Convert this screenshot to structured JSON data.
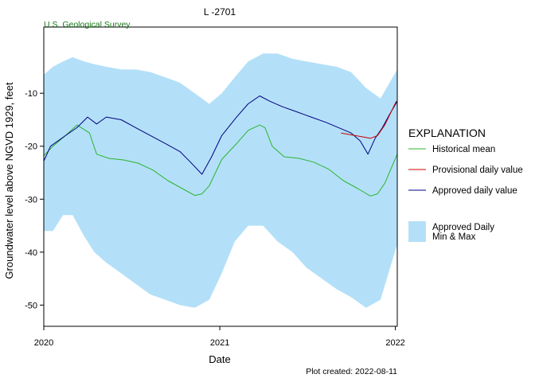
{
  "chart_data": {
    "type": "area",
    "title": "L  -2701",
    "subtitle": "U.S. Geological Survey",
    "xlabel": "Date",
    "ylabel": "Groundwater level above NGVD 1929, feet",
    "footnote": "Plot created: 2022-08-11",
    "xlim": [
      "2020-01-01",
      "2022-01-05"
    ],
    "ylim": [
      -54,
      2.5
    ],
    "x_ticks": [
      "2020-01-01",
      "2021-01-01",
      "2022-01-01"
    ],
    "x_tick_labels": [
      "2020",
      "2021",
      "2022"
    ],
    "y_ticks": [
      -10,
      -20,
      -30,
      -40,
      -50
    ],
    "y_tick_labels": [
      "-10",
      "-20",
      "-30",
      "-40",
      "-50"
    ],
    "grid": false,
    "legend_position": "right",
    "legend": {
      "title": "EXPLANATION",
      "items": [
        {
          "label": "Historical mean",
          "color": "#2db32d",
          "kind": "line"
        },
        {
          "label": "Provisional daily value",
          "color": "#cc0000",
          "kind": "line"
        },
        {
          "label": "Approved daily value",
          "color": "#000080",
          "kind": "line"
        },
        {
          "label": "Approved Daily\nMin & Max",
          "color": "#b3e0f8",
          "kind": "box"
        }
      ]
    },
    "series": [
      {
        "name": "Approved Daily Min & Max",
        "kind": "band",
        "color": "#b3e0f8",
        "x": [
          "2020-01-01",
          "2020-01-20",
          "2020-02-10",
          "2020-03-01",
          "2020-03-25",
          "2020-04-15",
          "2020-05-10",
          "2020-06-10",
          "2020-07-10",
          "2020-08-10",
          "2020-09-10",
          "2020-10-10",
          "2020-11-10",
          "2020-12-10",
          "2021-01-05",
          "2021-02-01",
          "2021-03-01",
          "2021-04-01",
          "2021-05-01",
          "2021-06-01",
          "2021-07-01",
          "2021-08-01",
          "2021-09-01",
          "2021-10-01",
          "2021-11-01",
          "2021-12-01",
          "2022-01-05"
        ],
        "upper": [
          -6.5,
          -5.0,
          -4.0,
          -3.2,
          -4.0,
          -4.5,
          -5.0,
          -5.5,
          -5.5,
          -6.0,
          -7.0,
          -8.0,
          -10.0,
          -12.0,
          -10.0,
          -7.0,
          -4.0,
          -2.5,
          -2.5,
          -3.5,
          -4.0,
          -4.5,
          -5.0,
          -6.0,
          -9.0,
          -11.0,
          -5.5
        ],
        "lower": [
          -36.0,
          -36.0,
          -33.0,
          -33.0,
          -37.0,
          -40.0,
          -42.0,
          -44.0,
          -46.0,
          -48.0,
          -49.0,
          -50.0,
          -50.5,
          -49.0,
          -44.0,
          -38.0,
          -35.0,
          -35.0,
          -38.0,
          -40.0,
          -43.0,
          -45.0,
          -47.0,
          -48.5,
          -50.5,
          -49.0,
          -38.5
        ]
      },
      {
        "name": "Historical mean",
        "kind": "line",
        "color": "#2db32d",
        "x": [
          "2020-01-01",
          "2020-01-20",
          "2020-02-15",
          "2020-03-10",
          "2020-04-05",
          "2020-04-20",
          "2020-05-15",
          "2020-06-15",
          "2020-07-15",
          "2020-08-15",
          "2020-09-15",
          "2020-10-15",
          "2020-11-10",
          "2020-11-25",
          "2020-12-10",
          "2021-01-05",
          "2021-02-05",
          "2021-03-01",
          "2021-03-25",
          "2021-04-05",
          "2021-04-20",
          "2021-05-15",
          "2021-06-15",
          "2021-07-15",
          "2021-08-15",
          "2021-09-15",
          "2021-10-15",
          "2021-11-10",
          "2021-11-25",
          "2021-12-10",
          "2022-01-05"
        ],
        "values": [
          -21.8,
          -20.0,
          -18.0,
          -16.0,
          -17.5,
          -21.5,
          -22.3,
          -22.6,
          -23.2,
          -24.5,
          -26.5,
          -28.0,
          -29.3,
          -29.0,
          -27.5,
          -22.5,
          -19.5,
          -17.0,
          -16.0,
          -16.5,
          -20.0,
          -22.0,
          -22.3,
          -23.0,
          -24.3,
          -26.5,
          -28.0,
          -29.4,
          -29.0,
          -27.0,
          -21.5
        ]
      },
      {
        "name": "Approved daily value",
        "kind": "line",
        "color": "#000080",
        "x": [
          "2020-01-01",
          "2020-01-15",
          "2020-02-15",
          "2020-03-10",
          "2020-04-01",
          "2020-04-20",
          "2020-05-10",
          "2020-06-10",
          "2020-07-10",
          "2020-08-10",
          "2020-09-10",
          "2020-10-10",
          "2020-11-01",
          "2020-11-25",
          "2020-12-15",
          "2021-01-05",
          "2021-02-05",
          "2021-03-01",
          "2021-03-25",
          "2021-04-15",
          "2021-05-10",
          "2021-06-10",
          "2021-07-10",
          "2021-08-10",
          "2021-09-05",
          "2021-10-01",
          "2021-10-20",
          "2021-11-05",
          "2021-11-20",
          "2021-12-05",
          "2021-12-20",
          "2022-01-05"
        ],
        "values": [
          -22.8,
          -20.0,
          -18.0,
          -16.5,
          -14.5,
          -15.8,
          -14.5,
          -15.0,
          -16.5,
          -18.0,
          -19.5,
          -21.0,
          -23.0,
          -25.3,
          -22.0,
          -18.0,
          -14.5,
          -12.0,
          -10.5,
          -11.5,
          -12.5,
          -13.5,
          -14.5,
          -15.5,
          -16.5,
          -17.5,
          -19.0,
          -21.5,
          -18.5,
          -16.5,
          -14.0,
          -11.5
        ]
      },
      {
        "name": "Provisional daily value",
        "kind": "line",
        "color": "#cc0000",
        "x": [
          "2021-09-10",
          "2021-10-10",
          "2021-11-10",
          "2021-11-25",
          "2021-12-10",
          "2022-01-03"
        ],
        "values": [
          -17.5,
          -18.0,
          -18.5,
          -18.0,
          -16.0,
          -11.5
        ]
      }
    ]
  }
}
